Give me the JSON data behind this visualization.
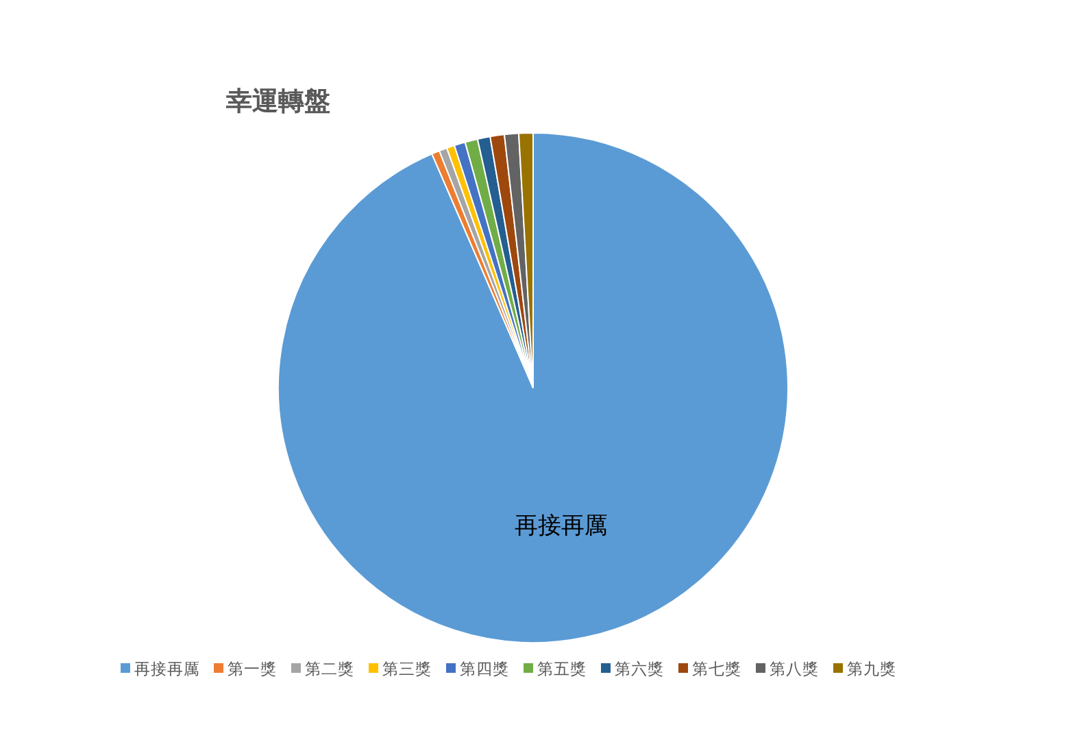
{
  "chart_data": {
    "type": "pie",
    "title": "幸運轉盤",
    "categories": [
      "再接再厲",
      "第一獎",
      "第二獎",
      "第三獎",
      "第四獎",
      "第五獎",
      "第六獎",
      "第七獎",
      "第八獎",
      "第九獎"
    ],
    "values": [
      93.5,
      0.5,
      0.5,
      0.5,
      0.7,
      0.8,
      0.8,
      0.9,
      0.9,
      0.9
    ],
    "colors": [
      "#5b9bd5",
      "#ed7d31",
      "#a5a5a5",
      "#ffc000",
      "#4472c4",
      "#70ad47",
      "#255e91",
      "#9e480e",
      "#636363",
      "#997300"
    ],
    "value_labels": [
      "再接再厲",
      null,
      null,
      null,
      null,
      null,
      null,
      null,
      null,
      null
    ],
    "legend": "bottom"
  }
}
